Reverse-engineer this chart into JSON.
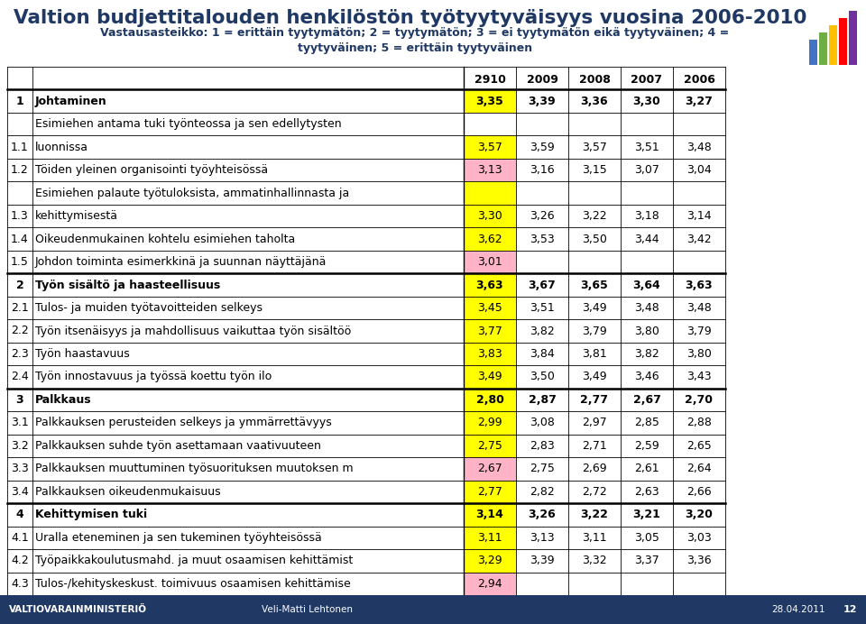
{
  "title": "Valtion budjettitalouden henkilöstön työtyytyväisyys vuosina 2006-2010",
  "subtitle": "Vastausasteikko: 1 = erittäin tyytymätön; 2 = tyytymätön; 3 = ei tyytymätön eikä tyytyväinen; 4 =\ntyytyväinen; 5 = erittäin tyytyväinen",
  "col_headers": [
    "2910",
    "2009",
    "2008",
    "2007",
    "2006"
  ],
  "title_color": "#1F3864",
  "subtitle_color": "#1F3864",
  "rows": [
    {
      "id": "1",
      "label": "Johtaminen",
      "bold": true,
      "thick_top": true,
      "values": [
        "3,35",
        "3,39",
        "3,36",
        "3,30",
        "3,27"
      ],
      "cell_color": [
        "#FFFF00",
        null,
        null,
        null,
        null
      ]
    },
    {
      "id": "",
      "label": "Esimiehen antama tuki työnteossa ja sen edellytysten",
      "bold": false,
      "thick_top": false,
      "values": [
        null,
        null,
        null,
        null,
        null
      ],
      "cell_color": [
        null,
        null,
        null,
        null,
        null
      ]
    },
    {
      "id": "1.1",
      "label": "luonnissa",
      "bold": false,
      "thick_top": false,
      "values": [
        "3,57",
        "3,59",
        "3,57",
        "3,51",
        "3,48"
      ],
      "cell_color": [
        "#FFFF00",
        null,
        null,
        null,
        null
      ]
    },
    {
      "id": "1.2",
      "label": "Töiden yleinen organisointi työyhteisössä",
      "bold": false,
      "thick_top": false,
      "values": [
        "3,13",
        "3,16",
        "3,15",
        "3,07",
        "3,04"
      ],
      "cell_color": [
        "#FFB3C6",
        null,
        null,
        null,
        null
      ]
    },
    {
      "id": "",
      "label": "Esimiehen palaute työtuloksista, ammatinhallinnasta ja",
      "bold": false,
      "thick_top": false,
      "values": [
        null,
        null,
        null,
        null,
        null
      ],
      "cell_color": [
        "#FFFF00",
        null,
        null,
        null,
        null
      ]
    },
    {
      "id": "1.3",
      "label": "kehittymisestä",
      "bold": false,
      "thick_top": false,
      "values": [
        "3,30",
        "3,26",
        "3,22",
        "3,18",
        "3,14"
      ],
      "cell_color": [
        "#FFFF00",
        null,
        null,
        null,
        null
      ]
    },
    {
      "id": "1.4",
      "label": "Oikeudenmukainen kohtelu esimiehen taholta",
      "bold": false,
      "thick_top": false,
      "values": [
        "3,62",
        "3,53",
        "3,50",
        "3,44",
        "3,42"
      ],
      "cell_color": [
        "#FFFF00",
        null,
        null,
        null,
        null
      ]
    },
    {
      "id": "1.5",
      "label": "Johdon toiminta esimerkkinä ja suunnan näyttäjänä",
      "bold": false,
      "thick_top": false,
      "values": [
        "3,01",
        null,
        null,
        null,
        null
      ],
      "cell_color": [
        "#FFB3C6",
        null,
        null,
        null,
        null
      ]
    },
    {
      "id": "2",
      "label": "Työn sisältö ja haasteellisuus",
      "bold": true,
      "thick_top": true,
      "values": [
        "3,63",
        "3,67",
        "3,65",
        "3,64",
        "3,63"
      ],
      "cell_color": [
        "#FFFF00",
        null,
        null,
        null,
        null
      ]
    },
    {
      "id": "2.1",
      "label": "Tulos- ja muiden työtavoitteiden selkeys",
      "bold": false,
      "thick_top": false,
      "values": [
        "3,45",
        "3,51",
        "3,49",
        "3,48",
        "3,48"
      ],
      "cell_color": [
        "#FFFF00",
        null,
        null,
        null,
        null
      ]
    },
    {
      "id": "2.2",
      "label": "Työn itsenäisyys ja mahdollisuus vaikuttaa työn sisältöö",
      "bold": false,
      "thick_top": false,
      "values": [
        "3,77",
        "3,82",
        "3,79",
        "3,80",
        "3,79"
      ],
      "cell_color": [
        "#FFFF00",
        null,
        null,
        null,
        null
      ]
    },
    {
      "id": "2.3",
      "label": "Työn haastavuus",
      "bold": false,
      "thick_top": false,
      "values": [
        "3,83",
        "3,84",
        "3,81",
        "3,82",
        "3,80"
      ],
      "cell_color": [
        "#FFFF00",
        null,
        null,
        null,
        null
      ]
    },
    {
      "id": "2.4",
      "label": "Työn innostavuus ja työssä koettu työn ilo",
      "bold": false,
      "thick_top": false,
      "values": [
        "3,49",
        "3,50",
        "3,49",
        "3,46",
        "3,43"
      ],
      "cell_color": [
        "#FFFF00",
        null,
        null,
        null,
        null
      ]
    },
    {
      "id": "3",
      "label": "Palkkaus",
      "bold": true,
      "thick_top": true,
      "values": [
        "2,80",
        "2,87",
        "2,77",
        "2,67",
        "2,70"
      ],
      "cell_color": [
        "#FFFF00",
        null,
        null,
        null,
        null
      ]
    },
    {
      "id": "3.1",
      "label": "Palkkauksen perusteiden selkeys ja ymmärrettävyys",
      "bold": false,
      "thick_top": false,
      "values": [
        "2,99",
        "3,08",
        "2,97",
        "2,85",
        "2,88"
      ],
      "cell_color": [
        "#FFFF00",
        null,
        null,
        null,
        null
      ]
    },
    {
      "id": "3.2",
      "label": "Palkkauksen suhde työn asettamaan vaativuuteen",
      "bold": false,
      "thick_top": false,
      "values": [
        "2,75",
        "2,83",
        "2,71",
        "2,59",
        "2,65"
      ],
      "cell_color": [
        "#FFFF00",
        null,
        null,
        null,
        null
      ]
    },
    {
      "id": "3.3",
      "label": "Palkkauksen muuttuminen työsuorituksen muutoksen m",
      "bold": false,
      "thick_top": false,
      "values": [
        "2,67",
        "2,75",
        "2,69",
        "2,61",
        "2,64"
      ],
      "cell_color": [
        "#FFB3C6",
        null,
        null,
        null,
        null
      ]
    },
    {
      "id": "3.4",
      "label": "Palkkauksen oikeudenmukaisuus",
      "bold": false,
      "thick_top": false,
      "values": [
        "2,77",
        "2,82",
        "2,72",
        "2,63",
        "2,66"
      ],
      "cell_color": [
        "#FFFF00",
        null,
        null,
        null,
        null
      ]
    },
    {
      "id": "4",
      "label": "Kehittymisen tuki",
      "bold": true,
      "thick_top": true,
      "values": [
        "3,14",
        "3,26",
        "3,22",
        "3,21",
        "3,20"
      ],
      "cell_color": [
        "#FFFF00",
        null,
        null,
        null,
        null
      ]
    },
    {
      "id": "4.1",
      "label": "Uralla eteneminen ja sen tukeminen työyhteisössä",
      "bold": false,
      "thick_top": false,
      "values": [
        "3,11",
        "3,13",
        "3,11",
        "3,05",
        "3,03"
      ],
      "cell_color": [
        "#FFFF00",
        null,
        null,
        null,
        null
      ]
    },
    {
      "id": "4.2",
      "label": "Työpaikkakoulutusmahd. ja muut osaamisen kehittämist",
      "bold": false,
      "thick_top": false,
      "values": [
        "3,29",
        "3,39",
        "3,32",
        "3,37",
        "3,36"
      ],
      "cell_color": [
        "#FFFF00",
        null,
        null,
        null,
        null
      ]
    },
    {
      "id": "4.3",
      "label": "Tulos-/kehityskeskust. toimivuus osaamisen kehittämise",
      "bold": false,
      "thick_top": false,
      "values": [
        "2,94",
        null,
        null,
        null,
        null
      ],
      "cell_color": [
        "#FFB3C6",
        null,
        null,
        null,
        null
      ]
    }
  ],
  "footer_bg": "#1F3864",
  "footer_text_color": "#FFFFFF",
  "footer_left": "VALTIOVARAINMINISTERIÖ",
  "footer_center": "Veli-Matti Lehtonen",
  "footer_right": "28.04.2011",
  "footer_page": "12",
  "deco_bar_colors": [
    "#4472C4",
    "#70AD47",
    "#FFC000",
    "#FF0000",
    "#7030A0"
  ],
  "deco_bar_heights": [
    28,
    36,
    44,
    52,
    60
  ],
  "bg_color": "#FFFFFF"
}
